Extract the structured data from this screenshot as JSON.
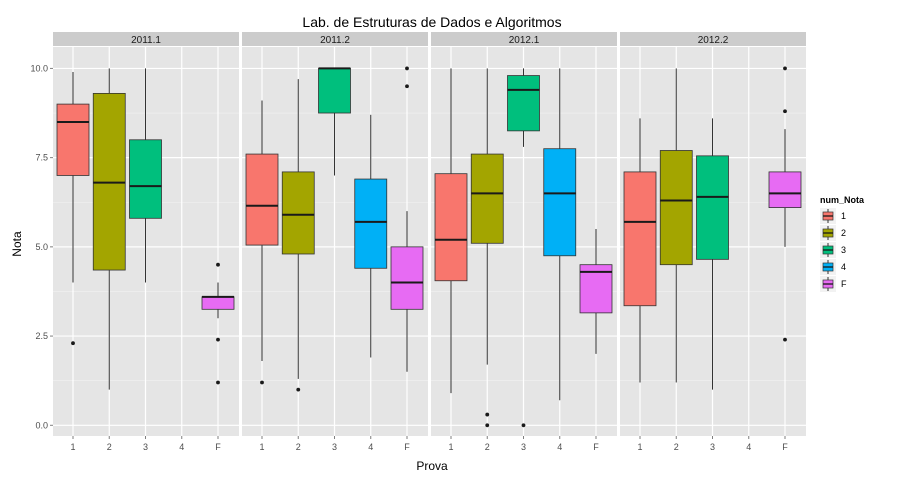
{
  "chart_data": {
    "type": "boxplot",
    "title": "Lab. de Estruturas de Dados e Algoritmos",
    "xlabel": "Prova",
    "ylabel": "Nota",
    "ylim": [
      -0.3,
      10.6
    ],
    "yticks": [
      0.0,
      2.5,
      5.0,
      7.5,
      10.0
    ],
    "ytick_labels": [
      "0.0",
      "2.5",
      "5.0",
      "7.5",
      "10.0"
    ],
    "categories": [
      "1",
      "2",
      "3",
      "4",
      "F"
    ],
    "legend": {
      "title": "num_Nota",
      "placement": "right",
      "entries": [
        {
          "label": "1",
          "color": "#F8766D"
        },
        {
          "label": "2",
          "color": "#A3A500"
        },
        {
          "label": "3",
          "color": "#00BF7D"
        },
        {
          "label": "4",
          "color": "#00B0F6"
        },
        {
          "label": "F",
          "color": "#E76BF3"
        }
      ]
    },
    "panels": [
      {
        "label": "2011.1",
        "boxes": [
          {
            "category": "1",
            "lower": 4.0,
            "q1": 7.0,
            "median": 8.5,
            "q3": 9.0,
            "upper": 9.9,
            "outliers": [
              2.3
            ]
          },
          {
            "category": "2",
            "lower": 1.0,
            "q1": 4.35,
            "median": 6.8,
            "q3": 9.3,
            "upper": 10.0,
            "outliers": []
          },
          {
            "category": "3",
            "lower": 4.0,
            "q1": 5.8,
            "median": 6.7,
            "q3": 8.0,
            "upper": 10.0,
            "outliers": []
          },
          {
            "category": "F",
            "lower": 3.0,
            "q1": 3.25,
            "median": 3.6,
            "q3": 3.6,
            "upper": 4.0,
            "outliers": [
              1.2,
              2.4,
              4.5
            ]
          }
        ]
      },
      {
        "label": "2011.2",
        "boxes": [
          {
            "category": "1",
            "lower": 1.8,
            "q1": 5.05,
            "median": 6.15,
            "q3": 7.6,
            "upper": 9.1,
            "outliers": [
              1.2
            ]
          },
          {
            "category": "2",
            "lower": 1.3,
            "q1": 4.8,
            "median": 5.9,
            "q3": 7.1,
            "upper": 9.7,
            "outliers": [
              1.0
            ]
          },
          {
            "category": "3",
            "lower": 7.0,
            "q1": 8.75,
            "median": 10.0,
            "q3": 10.0,
            "upper": 10.0,
            "outliers": []
          },
          {
            "category": "4",
            "lower": 1.9,
            "q1": 4.4,
            "median": 5.7,
            "q3": 6.9,
            "upper": 8.7,
            "outliers": []
          },
          {
            "category": "F",
            "lower": 1.5,
            "q1": 3.25,
            "median": 4.0,
            "q3": 5.0,
            "upper": 6.0,
            "outliers": [
              9.5,
              10.0
            ]
          }
        ]
      },
      {
        "label": "2012.1",
        "boxes": [
          {
            "category": "1",
            "lower": 0.9,
            "q1": 4.05,
            "median": 5.2,
            "q3": 7.05,
            "upper": 10.0,
            "outliers": []
          },
          {
            "category": "2",
            "lower": 1.7,
            "q1": 5.1,
            "median": 6.5,
            "q3": 7.6,
            "upper": 10.0,
            "outliers": [
              0.0,
              0.3
            ]
          },
          {
            "category": "3",
            "lower": 7.8,
            "q1": 8.25,
            "median": 9.4,
            "q3": 9.8,
            "upper": 10.0,
            "outliers": [
              0.0
            ]
          },
          {
            "category": "4",
            "lower": 0.7,
            "q1": 4.75,
            "median": 6.5,
            "q3": 7.75,
            "upper": 10.0,
            "outliers": []
          },
          {
            "category": "F",
            "lower": 2.0,
            "q1": 3.15,
            "median": 4.3,
            "q3": 4.5,
            "upper": 5.5,
            "outliers": []
          }
        ]
      },
      {
        "label": "2012.2",
        "boxes": [
          {
            "category": "1",
            "lower": 1.2,
            "q1": 3.35,
            "median": 5.7,
            "q3": 7.1,
            "upper": 8.6,
            "outliers": []
          },
          {
            "category": "2",
            "lower": 1.2,
            "q1": 4.5,
            "median": 6.3,
            "q3": 7.7,
            "upper": 10.0,
            "outliers": []
          },
          {
            "category": "3",
            "lower": 1.0,
            "q1": 4.65,
            "median": 6.4,
            "q3": 7.55,
            "upper": 8.6,
            "outliers": []
          },
          {
            "category": "F",
            "lower": 5.0,
            "q1": 6.1,
            "median": 6.5,
            "q3": 7.1,
            "upper": 8.3,
            "outliers": [
              2.4,
              8.8,
              10.0
            ]
          }
        ]
      }
    ]
  }
}
